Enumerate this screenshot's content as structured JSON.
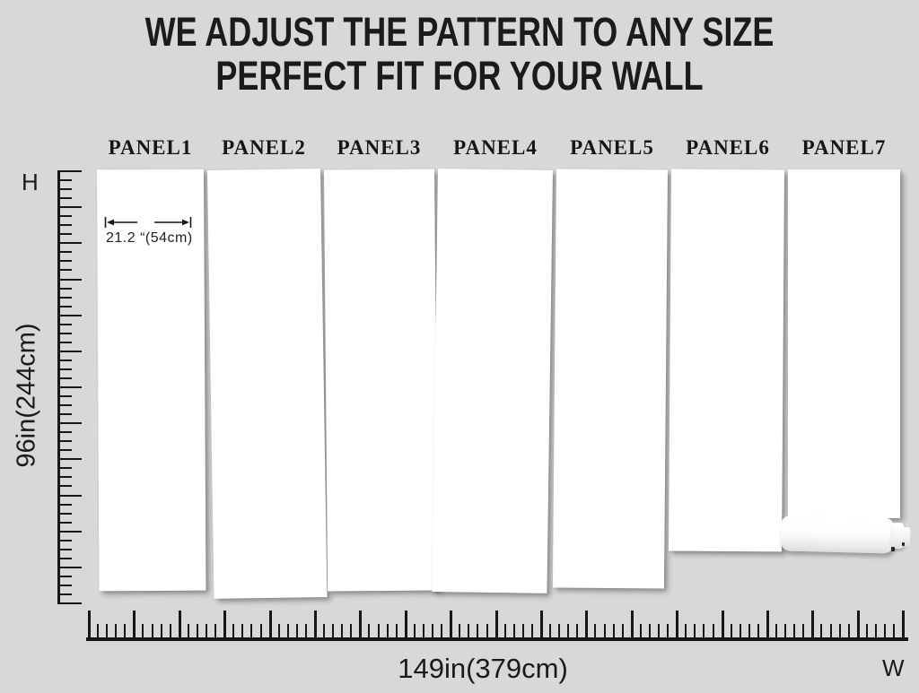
{
  "title": {
    "line1": "WE ADJUST THE PATTERN TO ANY SIZE",
    "line2": "PERFECT FIT FOR YOUR WALL"
  },
  "panels": [
    {
      "label": "PANEL1"
    },
    {
      "label": "PANEL2"
    },
    {
      "label": "PANEL3"
    },
    {
      "label": "PANEL4"
    },
    {
      "label": "PANEL5"
    },
    {
      "label": "PANEL6"
    },
    {
      "label": "PANEL7"
    }
  ],
  "panel1_annotation": {
    "width_text": "21.2 “(54cm)"
  },
  "rulers": {
    "height": {
      "axis_letter": "H",
      "label": "96in(244cm)"
    },
    "width": {
      "axis_letter": "W",
      "label": "149in(379cm)"
    }
  },
  "colors": {
    "background": "#d8d8d9",
    "panel": "#ffffff",
    "ink": "#1c1c1c"
  }
}
